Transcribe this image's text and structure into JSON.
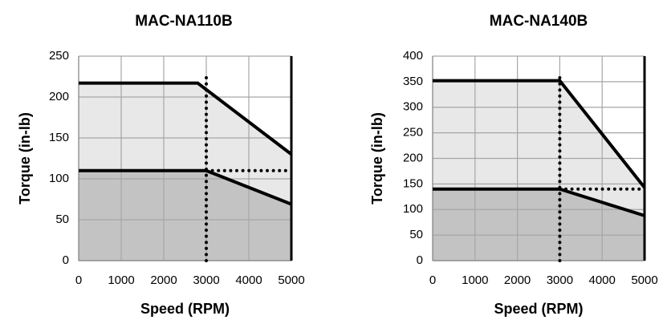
{
  "chart_data": [
    {
      "type": "area",
      "title": "MAC-NA110B",
      "xlabel": "Speed (RPM)",
      "ylabel": "Torque (in-lb)",
      "xlim": [
        0,
        5000
      ],
      "ylim": [
        0,
        250
      ],
      "xticks": [
        0,
        1000,
        2000,
        3000,
        4000,
        5000
      ],
      "yticks": [
        0,
        50,
        100,
        150,
        200,
        250
      ],
      "grid": true,
      "series": [
        {
          "role": "intermittent",
          "fill": "#e8e8e8",
          "x": [
            0,
            2800,
            5000
          ],
          "y": [
            217,
            217,
            130
          ]
        },
        {
          "role": "continuous",
          "fill": "#c3c3c3",
          "x": [
            0,
            3000,
            5000
          ],
          "y": [
            110,
            110,
            69
          ]
        }
      ],
      "reference_lines": [
        {
          "orientation": "vertical",
          "x": 3000,
          "y_range": [
            0,
            228
          ]
        },
        {
          "orientation": "horizontal",
          "y": 110,
          "x_range": [
            3000,
            5000
          ]
        }
      ]
    },
    {
      "type": "area",
      "title": "MAC-NA140B",
      "xlabel": "Speed (RPM)",
      "ylabel": "Torque (in-lb)",
      "xlim": [
        0,
        5000
      ],
      "ylim": [
        0,
        400
      ],
      "xticks": [
        0,
        1000,
        2000,
        3000,
        4000,
        5000
      ],
      "yticks": [
        0,
        50,
        100,
        150,
        200,
        250,
        300,
        350,
        400
      ],
      "grid": true,
      "series": [
        {
          "role": "intermittent",
          "fill": "#e8e8e8",
          "x": [
            0,
            3000,
            5000
          ],
          "y": [
            352,
            352,
            143
          ]
        },
        {
          "role": "continuous",
          "fill": "#c3c3c3",
          "x": [
            0,
            3000,
            5000
          ],
          "y": [
            140,
            140,
            88
          ]
        }
      ],
      "reference_lines": [
        {
          "orientation": "vertical",
          "x": 3000,
          "y_range": [
            0,
            365
          ]
        },
        {
          "orientation": "horizontal",
          "y": 140,
          "x_range": [
            3000,
            5000
          ]
        }
      ]
    }
  ]
}
